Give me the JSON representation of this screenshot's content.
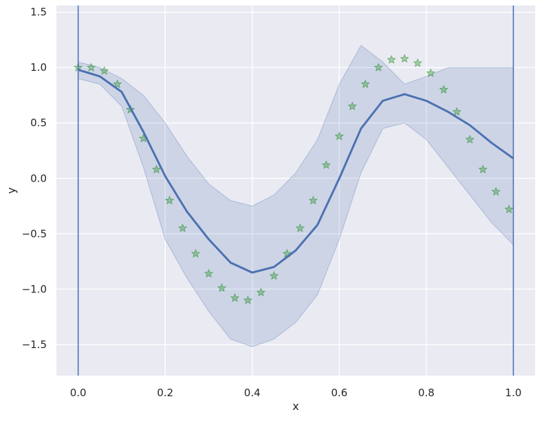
{
  "chart_data": {
    "type": "line",
    "title": "",
    "xlabel": "x",
    "ylabel": "y",
    "xlim": [
      -0.05,
      1.05
    ],
    "ylim": [
      -1.78,
      1.56
    ],
    "x_ticks": [
      0.0,
      0.2,
      0.4,
      0.6,
      0.8,
      1.0
    ],
    "x_tick_labels": [
      "0.0",
      "0.2",
      "0.4",
      "0.6",
      "0.8",
      "1.0"
    ],
    "y_ticks": [
      -1.5,
      -1.0,
      -0.5,
      0.0,
      0.5,
      1.0,
      1.5
    ],
    "y_tick_labels": [
      "−1.5",
      "−1.0",
      "−0.5",
      "0.0",
      "0.5",
      "1.0",
      "1.5"
    ],
    "grid": true,
    "vlines": [
      0.0,
      1.0
    ],
    "colors": {
      "background": "#eaeaf2",
      "grid": "#ffffff",
      "mean_line": "#4c72b0",
      "band": "#4c72b0",
      "observations": "#008000"
    },
    "mean_curve": {
      "x": [
        0.0,
        0.05,
        0.1,
        0.15,
        0.2,
        0.25,
        0.3,
        0.35,
        0.4,
        0.45,
        0.5,
        0.55,
        0.6,
        0.65,
        0.7,
        0.75,
        0.8,
        0.85,
        0.9,
        0.95,
        1.0
      ],
      "y": [
        0.98,
        0.92,
        0.78,
        0.42,
        0.02,
        -0.3,
        -0.55,
        -0.76,
        -0.85,
        -0.8,
        -0.65,
        -0.42,
        0.0,
        0.45,
        0.7,
        0.76,
        0.7,
        0.6,
        0.48,
        0.32,
        0.18
      ]
    },
    "upper_band": {
      "x": [
        0.0,
        0.05,
        0.1,
        0.15,
        0.2,
        0.25,
        0.3,
        0.35,
        0.4,
        0.45,
        0.5,
        0.55,
        0.6,
        0.65,
        0.7,
        0.75,
        0.8,
        0.85,
        0.9,
        0.95,
        1.0
      ],
      "y": [
        1.05,
        1.0,
        0.9,
        0.75,
        0.5,
        0.2,
        -0.05,
        -0.2,
        -0.25,
        -0.15,
        0.05,
        0.35,
        0.85,
        1.2,
        1.05,
        0.85,
        0.92,
        1.0,
        1.0,
        1.0,
        1.0
      ]
    },
    "lower_band": {
      "x": [
        0.0,
        0.05,
        0.1,
        0.15,
        0.2,
        0.25,
        0.3,
        0.35,
        0.4,
        0.45,
        0.5,
        0.55,
        0.6,
        0.65,
        0.7,
        0.75,
        0.8,
        0.85,
        0.9,
        0.95,
        1.0
      ],
      "y": [
        0.9,
        0.85,
        0.65,
        0.1,
        -0.55,
        -0.9,
        -1.2,
        -1.45,
        -1.52,
        -1.45,
        -1.3,
        -1.05,
        -0.55,
        0.05,
        0.45,
        0.5,
        0.35,
        0.1,
        -0.15,
        -0.4,
        -0.6
      ]
    },
    "observations": {
      "x": [
        0.0,
        0.03,
        0.06,
        0.09,
        0.12,
        0.15,
        0.18,
        0.21,
        0.24,
        0.27,
        0.3,
        0.33,
        0.36,
        0.39,
        0.42,
        0.45,
        0.48,
        0.51,
        0.54,
        0.57,
        0.6,
        0.63,
        0.66,
        0.69,
        0.72,
        0.75,
        0.78,
        0.81,
        0.84,
        0.87,
        0.9,
        0.93,
        0.96,
        0.99
      ],
      "y": [
        1.0,
        1.0,
        0.97,
        0.85,
        0.62,
        0.36,
        0.08,
        -0.2,
        -0.45,
        -0.68,
        -0.86,
        -0.99,
        -1.08,
        -1.1,
        -1.03,
        -0.88,
        -0.68,
        -0.45,
        -0.2,
        0.12,
        0.38,
        0.65,
        0.85,
        1.0,
        1.07,
        1.08,
        1.04,
        0.95,
        0.8,
        0.6,
        0.35,
        0.08,
        -0.12,
        -0.28
      ]
    }
  }
}
